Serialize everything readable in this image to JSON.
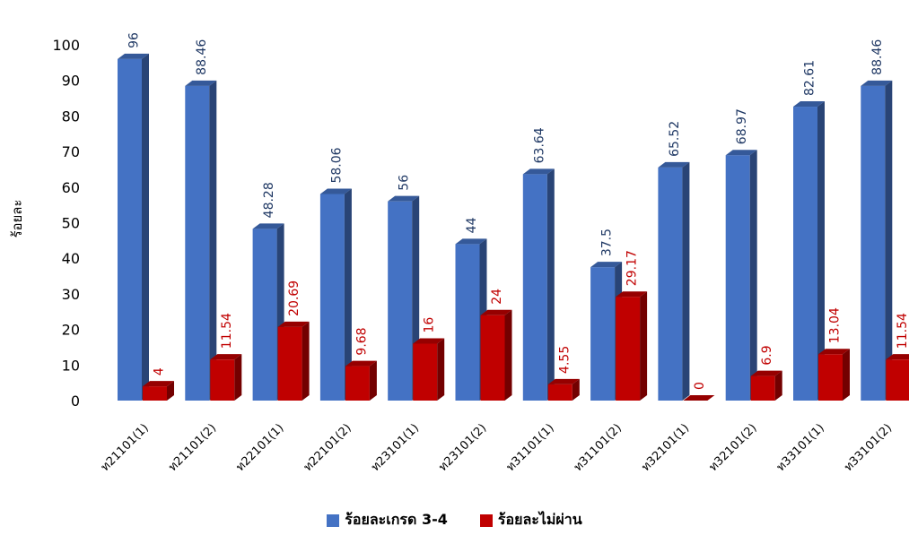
{
  "chart_data": {
    "type": "bar",
    "title": "",
    "xlabel": "",
    "ylabel": "ร้อยละ",
    "ylim": [
      0,
      100
    ],
    "yticks": [
      0,
      10,
      20,
      30,
      40,
      50,
      60,
      70,
      80,
      90,
      100
    ],
    "grid": false,
    "legend_position": "bottom",
    "style": "3d-bar",
    "categories": [
      "ท21101(1)",
      "ท21101(2)",
      "ท22101(1)",
      "ท22101(2)",
      "ท23101(1)",
      "ท23101(2)",
      "ท31101(1)",
      "ท31101(2)",
      "ท32101(1)",
      "ท32101(2)",
      "ท33101(1)",
      "ท33101(2)"
    ],
    "series": [
      {
        "name": "ร้อยละเกรด 3-4",
        "color": "#4472C4",
        "label_color": "#1F3864",
        "values": [
          96,
          88.46,
          48.28,
          58.06,
          56,
          44,
          63.64,
          37.5,
          65.52,
          68.97,
          82.61,
          88.46
        ]
      },
      {
        "name": "ร้อยละไม่ผ่าน",
        "color": "#C00000",
        "label_color": "#C00000",
        "values": [
          4,
          11.54,
          20.69,
          9.68,
          16,
          24,
          4.55,
          29.17,
          0,
          6.9,
          13.04,
          11.54
        ]
      }
    ]
  }
}
